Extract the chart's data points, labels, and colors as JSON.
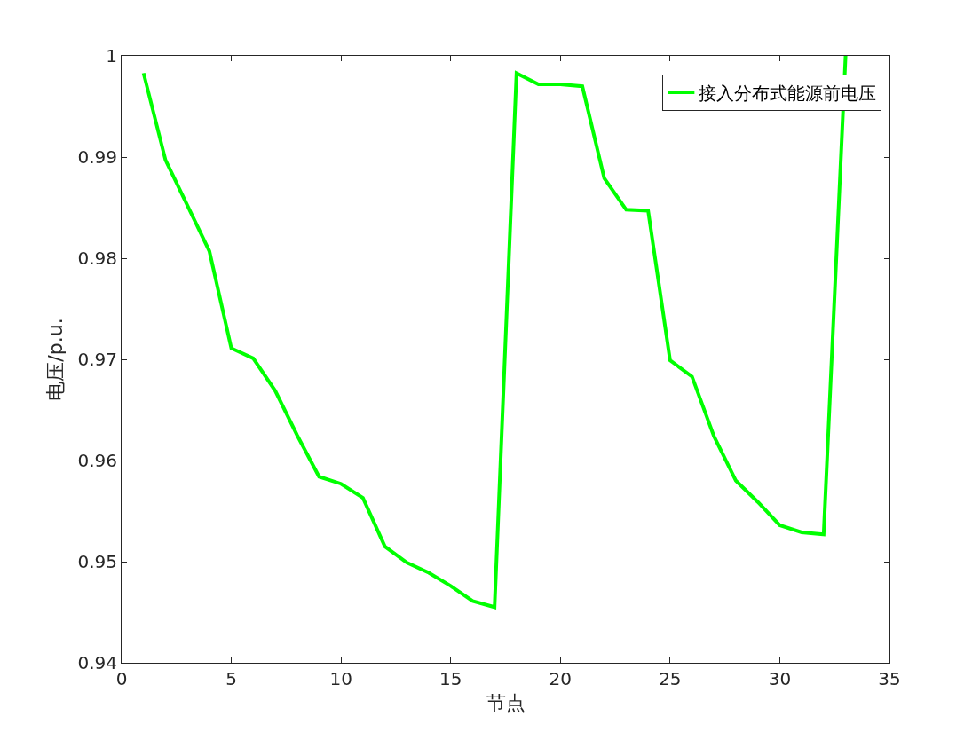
{
  "chart_data": {
    "type": "line",
    "xlabel": "节点",
    "ylabel": "电压/p.u.",
    "x": [
      1,
      2,
      3,
      4,
      5,
      6,
      7,
      8,
      9,
      10,
      11,
      12,
      13,
      14,
      15,
      16,
      17,
      18,
      19,
      20,
      21,
      22,
      23,
      24,
      25,
      26,
      27,
      28,
      29,
      30,
      31,
      32,
      33
    ],
    "series": [
      {
        "name": "接入分布式能源前电压",
        "color": "#00ff00",
        "values": [
          0.9983,
          0.9897,
          0.9852,
          0.9807,
          0.9711,
          0.9701,
          0.9669,
          0.9625,
          0.9584,
          0.9577,
          0.9563,
          0.9515,
          0.9499,
          0.9489,
          0.9476,
          0.9461,
          0.9455,
          0.9983,
          0.9972,
          0.9972,
          0.997,
          0.9879,
          0.9848,
          0.9847,
          0.9699,
          0.9683,
          0.9624,
          0.958,
          0.9559,
          0.9536,
          0.9529,
          0.9527,
          1.0
        ]
      }
    ],
    "xlim": [
      0,
      35
    ],
    "xticks": [
      0,
      5,
      10,
      15,
      20,
      25,
      30,
      35
    ],
    "ylim": [
      0.94,
      1
    ],
    "yticks": [
      0.94,
      0.95,
      0.96,
      0.97,
      0.98,
      0.99,
      1
    ],
    "legend": "top right",
    "marker": "none",
    "line_style": "solid"
  }
}
